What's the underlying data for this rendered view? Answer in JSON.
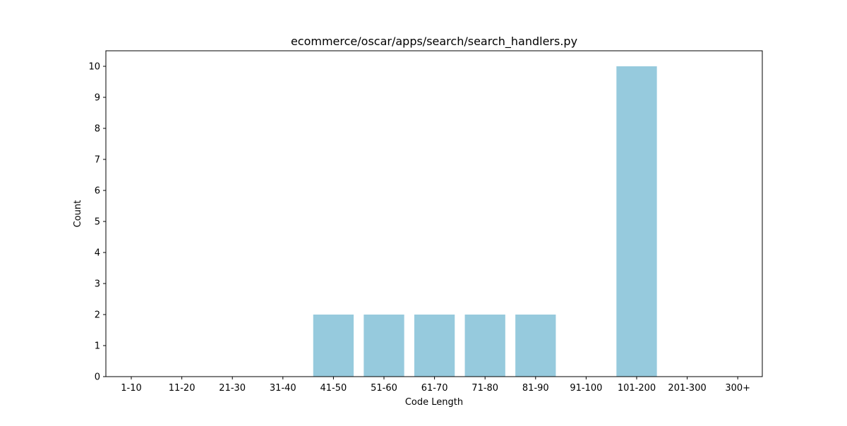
{
  "chart_data": {
    "type": "bar",
    "title": "ecommerce/oscar/apps/search/search_handlers.py",
    "xlabel": "Code Length",
    "ylabel": "Count",
    "categories": [
      "1-10",
      "11-20",
      "21-30",
      "31-40",
      "41-50",
      "51-60",
      "61-70",
      "71-80",
      "81-90",
      "91-100",
      "101-200",
      "201-300",
      "300+"
    ],
    "values": [
      0,
      0,
      0,
      0,
      2,
      2,
      2,
      2,
      2,
      0,
      10,
      0,
      0
    ],
    "ylim": [
      0,
      10.5
    ],
    "yticks": [
      0,
      1,
      2,
      3,
      4,
      5,
      6,
      7,
      8,
      9,
      10
    ],
    "grid": false,
    "bar_color": "#96cadd",
    "axis_color": "#000000"
  }
}
